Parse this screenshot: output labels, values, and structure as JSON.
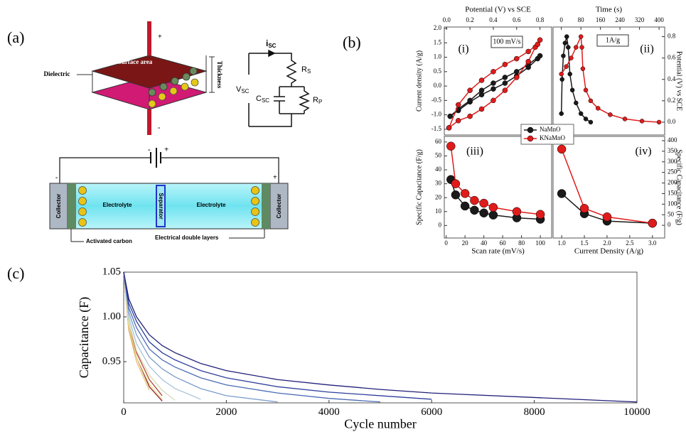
{
  "figure": {
    "panel_labels": [
      "(a)",
      "(b)",
      "(c)"
    ]
  },
  "diagram": {
    "capacitor": {
      "top_label": "Surface area",
      "side_label": "Dielectric",
      "thickness_label": "Thickness",
      "plus": "+",
      "minus": "-"
    },
    "circuit": {
      "current": {
        "base": "i",
        "sub": "SC"
      },
      "series_resistor": {
        "base": "R",
        "sub": "S"
      },
      "voltage": {
        "base": "V",
        "sub": "SC"
      },
      "capacitor": {
        "base": "C",
        "sub": "SC"
      },
      "parallel_resistor": {
        "base": "R",
        "sub": "P"
      }
    },
    "cell": {
      "battery_minus": "-",
      "battery_plus": "+",
      "left_terminal": "-",
      "right_terminal": "+",
      "left_collector": "Collector",
      "right_collector": "Collector",
      "left_electrolyte": "Electrolyte",
      "separator": "Separator",
      "right_electrolyte": "Electrolyte",
      "left_callout": "Activated carbon",
      "right_callout": "Electrical double layers"
    }
  },
  "chart_data": [
    {
      "type": "line",
      "xlabel": "Potential (V) vs SCE",
      "ylabel": "Current density (A/g)",
      "xaxis": "top",
      "yaxis": "left",
      "markers": true,
      "annotations": [
        "(i)",
        "100 mV/s"
      ],
      "xlim": [
        -0.02,
        0.9
      ],
      "ylim": [
        -1.7,
        2.05
      ],
      "xticks": [
        {
          "value": 0,
          "label": "0.0"
        },
        0.2,
        0.4,
        0.6,
        0.8
      ],
      "yticks": [
        -1.5,
        {
          "value": -1,
          "label": "-1.0"
        },
        -0.5,
        {
          "value": 0,
          "label": "0.0"
        },
        0.5,
        {
          "value": 1,
          "label": "1.0"
        },
        1.5,
        {
          "value": 2,
          "label": "2.0"
        }
      ],
      "series": [
        {
          "name": "NaMnO",
          "color": "#1a1a1a",
          "x": [
            0.03,
            0.1,
            0.2,
            0.3,
            0.4,
            0.5,
            0.6,
            0.7,
            0.78,
            0.8,
            0.7,
            0.6,
            0.5,
            0.4,
            0.3,
            0.2,
            0.1,
            0.03
          ],
          "values": [
            -1.05,
            -0.85,
            -0.55,
            -0.3,
            -0.1,
            0.1,
            0.35,
            0.65,
            0.95,
            1.05,
            0.75,
            0.5,
            0.3,
            0.1,
            -0.15,
            -0.5,
            -0.8,
            -1.05
          ]
        },
        {
          "name": "KNaMnO",
          "color": "#e01b1b",
          "x": [
            0.02,
            0.1,
            0.2,
            0.3,
            0.4,
            0.5,
            0.6,
            0.7,
            0.76,
            0.8,
            0.78,
            0.7,
            0.6,
            0.5,
            0.4,
            0.3,
            0.2,
            0.1,
            0.02
          ],
          "values": [
            -1.45,
            -1.2,
            -1.05,
            -0.8,
            -0.5,
            -0.15,
            0.3,
            0.85,
            1.35,
            1.6,
            1.45,
            1.2,
            0.95,
            0.75,
            0.5,
            0.2,
            -0.15,
            -0.65,
            -1.45
          ]
        }
      ]
    },
    {
      "type": "line",
      "xlabel": "Time (s)",
      "ylabel": "Potential (V) vs SCE",
      "xaxis": "top",
      "yaxis": "right",
      "markers": true,
      "annotations": [
        "(ii)",
        "1A/g"
      ],
      "xlim": [
        -34,
        423
      ],
      "ylim": [
        -0.12,
        0.89
      ],
      "xticks": [
        0,
        80,
        160,
        240,
        320,
        400
      ],
      "yticks": [
        {
          "value": 0,
          "label": "0.0"
        },
        0.2,
        0.4,
        0.6,
        0.8
      ],
      "series": [
        {
          "color": "#1a1a1a",
          "x": [
            0,
            3,
            8,
            15,
            22,
            28,
            35,
            45,
            60,
            80,
            100,
            120
          ],
          "values": [
            0.08,
            0.4,
            0.62,
            0.74,
            0.8,
            0.7,
            0.45,
            0.3,
            0.18,
            0.08,
            0.03,
            0.0
          ]
        },
        {
          "color": "#e01b1b",
          "x": [
            0,
            20,
            40,
            60,
            80,
            84,
            88,
            100,
            120,
            150,
            200,
            260,
            330,
            400
          ],
          "values": [
            0.45,
            0.52,
            0.6,
            0.7,
            0.8,
            0.7,
            0.5,
            0.3,
            0.2,
            0.13,
            0.07,
            0.03,
            0.01,
            0.0
          ]
        }
      ]
    },
    {
      "type": "line",
      "xlabel": "Scan rate (mV/s)",
      "ylabel": "Specific Capacitance (F/g)",
      "xaxis": "bottom",
      "yaxis": "left",
      "markers": true,
      "annotations": [
        "(iii)"
      ],
      "xlim": [
        -2,
        112
      ],
      "ylim": [
        -9,
        64
      ],
      "xticks": [
        0,
        20,
        40,
        60,
        80,
        100
      ],
      "yticks": [
        0,
        10,
        20,
        30,
        40,
        50,
        60
      ],
      "x": [
        5,
        10,
        20,
        30,
        40,
        50,
        75,
        100
      ],
      "series": [
        {
          "color": "#1a1a1a",
          "values": [
            33,
            22,
            14,
            11,
            9,
            7.5,
            5.5,
            4.5
          ]
        },
        {
          "color": "#e01b1b",
          "values": [
            57,
            30,
            23,
            18,
            16,
            13,
            10,
            8
          ]
        }
      ]
    },
    {
      "type": "line",
      "xlabel": "Current Density (A/g)",
      "ylabel": "Specific Capacitance (F/g)",
      "xaxis": "bottom",
      "yaxis": "right",
      "markers": true,
      "annotations": [
        "(iv)"
      ],
      "xlim": [
        0.81,
        3.27
      ],
      "ylim": [
        -60,
        420
      ],
      "xticks": [
        {
          "value": 1,
          "label": "1.0"
        },
        1.5,
        {
          "value": 2,
          "label": "2.0"
        },
        2.5,
        {
          "value": 3,
          "label": "3.0"
        }
      ],
      "yticks": [
        0,
        50,
        100,
        150,
        200,
        250,
        300,
        350,
        400
      ],
      "x": [
        1,
        1.5,
        2,
        3
      ],
      "series": [
        {
          "color": "#1a1a1a",
          "values": [
            150,
            55,
            20,
            10
          ]
        },
        {
          "color": "#e01b1b",
          "values": [
            360,
            80,
            40,
            10
          ]
        }
      ]
    },
    {
      "type": "line",
      "xlabel": "Cycle number",
      "ylabel": "Capacitance (F)",
      "xaxis": "bottom",
      "yaxis": "left",
      "markers": false,
      "xlim": [
        0,
        10000
      ],
      "ylim": [
        0.904,
        1.05
      ],
      "xticks": [
        0,
        2000,
        4000,
        6000,
        8000,
        10000
      ],
      "yticks": [
        0.95,
        {
          "value": 1,
          "label": "1.00"
        },
        1.05
      ],
      "x": [
        0,
        100,
        250,
        500,
        750,
        1000,
        1500,
        2000,
        3000,
        4000,
        5000,
        6000,
        8000,
        10000
      ],
      "series": [
        {
          "color": "#8e1e1e",
          "values": [
            1.05,
            0.985,
            0.955,
            0.922,
            0.906,
            null,
            null,
            null,
            null,
            null,
            null,
            null,
            null,
            null
          ]
        },
        {
          "color": "#b8453a",
          "values": [
            1.05,
            0.99,
            0.96,
            0.93,
            0.912,
            null,
            null,
            null,
            null,
            null,
            null,
            null,
            null,
            null
          ]
        },
        {
          "color": "#e6c26e",
          "values": [
            1.05,
            0.985,
            0.95,
            0.918,
            null,
            null,
            null,
            null,
            null,
            null,
            null,
            null,
            null,
            null
          ]
        },
        {
          "color": "#ece29a",
          "values": [
            1.05,
            0.99,
            0.955,
            0.925,
            0.908,
            null,
            null,
            null,
            null,
            null,
            null,
            null,
            null,
            null
          ]
        },
        {
          "color": "#d4dcb4",
          "values": [
            1.05,
            0.995,
            0.962,
            0.935,
            0.918,
            0.907,
            null,
            null,
            null,
            null,
            null,
            null,
            null,
            null
          ]
        },
        {
          "color": "#a9c4dc",
          "values": [
            1.05,
            1.0,
            0.97,
            0.945,
            0.93,
            0.92,
            0.908,
            null,
            null,
            null,
            null,
            null,
            null,
            null
          ]
        },
        {
          "color": "#7b9dcc",
          "values": [
            1.05,
            1.005,
            0.98,
            0.955,
            0.942,
            0.933,
            0.92,
            0.912,
            0.905,
            null,
            null,
            null,
            null,
            null
          ]
        },
        {
          "color": "#4a6bb5",
          "values": [
            1.05,
            1.01,
            0.988,
            0.964,
            0.952,
            0.944,
            0.932,
            0.924,
            0.915,
            0.909,
            0.905,
            null,
            null,
            null
          ]
        },
        {
          "color": "#2c3e9c",
          "values": [
            1.05,
            1.015,
            0.995,
            0.972,
            0.96,
            0.952,
            0.94,
            0.932,
            0.922,
            0.916,
            0.912,
            0.908,
            null,
            null
          ]
        },
        {
          "color": "#1f1f7a",
          "values": [
            1.05,
            1.02,
            1.0,
            0.98,
            0.968,
            0.96,
            0.948,
            0.94,
            0.93,
            0.924,
            0.919,
            0.915,
            0.91,
            0.905
          ]
        }
      ]
    }
  ]
}
